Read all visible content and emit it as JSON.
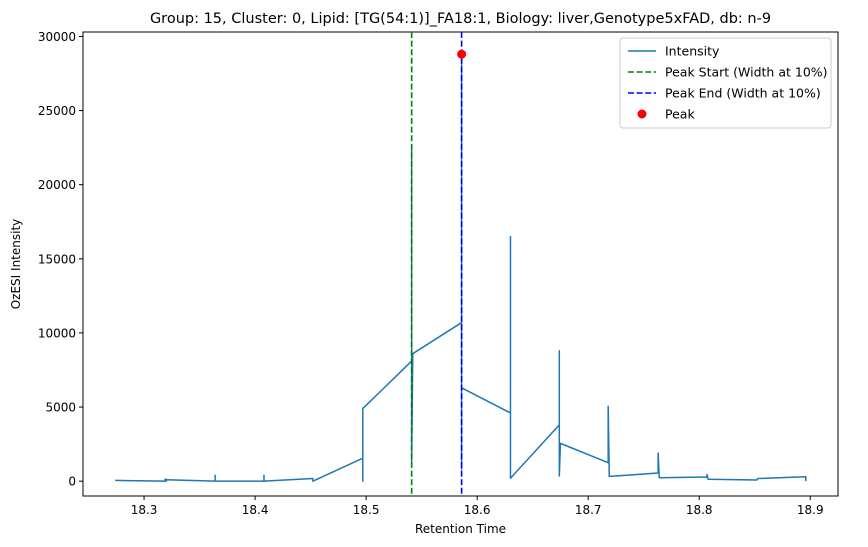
{
  "chart_data": {
    "type": "line",
    "title": "Group: 15, Cluster: 0, Lipid: [TG(54:1)]_FA18:1, Biology: liver,Genotype5xFAD, db: n-9",
    "xlabel": "Retention Time",
    "ylabel": "OzESI Intensity",
    "xlim": [
      18.245,
      18.925
    ],
    "ylim": [
      -1000,
      30300
    ],
    "xticks": [
      18.3,
      18.4,
      18.5,
      18.6,
      18.7,
      18.8,
      18.9
    ],
    "yticks": [
      0,
      5000,
      10000,
      15000,
      20000,
      25000,
      30000
    ],
    "xtick_labels": [
      "18.3",
      "18.4",
      "18.5",
      "18.6",
      "18.7",
      "18.8",
      "18.9"
    ],
    "ytick_labels": [
      "0",
      "5000",
      "10000",
      "15000",
      "20000",
      "25000",
      "30000"
    ],
    "grid": false,
    "legend_position": "top-right",
    "series": [
      {
        "name": "Intensity",
        "kind": "line",
        "color": "#1f77b4",
        "x": [
          18.274,
          18.319,
          18.319,
          18.32,
          18.32,
          18.364,
          18.364,
          18.364,
          18.408,
          18.408,
          18.408,
          18.452,
          18.452,
          18.497,
          18.497,
          18.497,
          18.541,
          18.541,
          18.541,
          18.542,
          18.586,
          18.586,
          18.586,
          18.586,
          18.63,
          18.63,
          18.63,
          18.674,
          18.674,
          18.674,
          18.675,
          18.718,
          18.718,
          18.719,
          18.763,
          18.763,
          18.764,
          18.807,
          18.807,
          18.808,
          18.852,
          18.852,
          18.853,
          18.896,
          18.896
        ],
        "y": [
          50,
          0,
          150,
          0,
          100,
          0,
          400,
          0,
          0,
          400,
          0,
          180,
          0,
          1550,
          0,
          4900,
          8100,
          22400,
          1200,
          8600,
          10700,
          28800,
          800,
          6300,
          4600,
          16500,
          200,
          3800,
          8800,
          350,
          2550,
          1250,
          5050,
          320,
          550,
          1900,
          230,
          280,
          450,
          130,
          80,
          130,
          180,
          300,
          0
        ]
      },
      {
        "name": "Peak Start (Width at 10%)",
        "kind": "vline",
        "color": "#008000",
        "x": 18.541
      },
      {
        "name": "Peak End (Width at 10%)",
        "kind": "vline",
        "color": "#0000ff",
        "x": 18.586
      },
      {
        "name": "Peak",
        "kind": "point",
        "color": "#ff0000",
        "x": 18.586,
        "y": 28800
      }
    ]
  }
}
